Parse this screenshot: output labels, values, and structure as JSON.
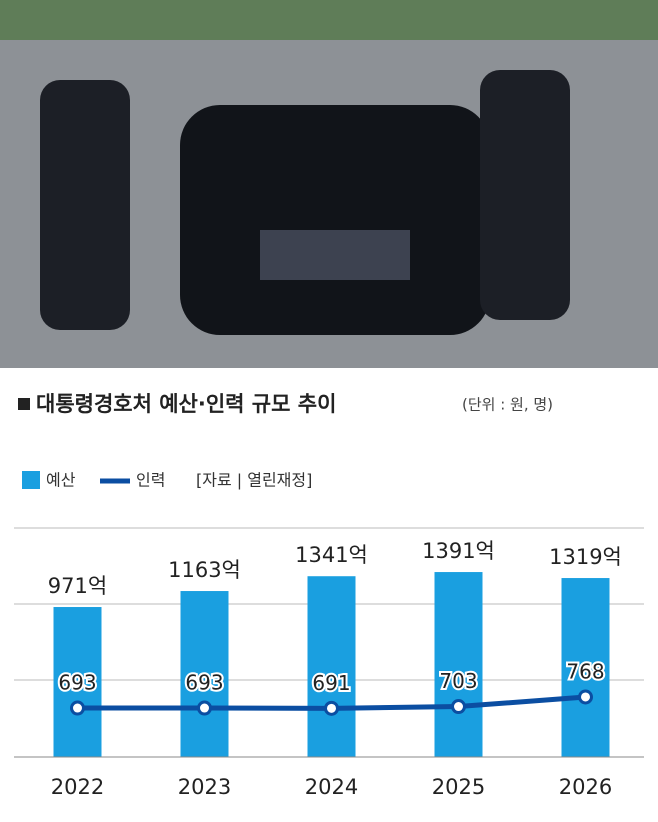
{
  "chart_data": {
    "type": "bar",
    "title": "대통령경호처 예산·인력 규모 추이",
    "subtitle": "(단위 : 원, 명)",
    "source": "[자료 | 열린재정]",
    "categories": [
      "2022",
      "2023",
      "2024",
      "2025",
      "2026"
    ],
    "series": [
      {
        "name": "예산",
        "type": "bar",
        "color": "#1a9fe0",
        "values": [
          971,
          1163,
          1341,
          1391,
          1319
        ],
        "value_labels": [
          "971억",
          "1163억",
          "1341억",
          "1391억",
          "1319억"
        ]
      },
      {
        "name": "인력",
        "type": "line",
        "axis": "y2",
        "color": "#0b4ea2",
        "values": [
          693,
          693,
          691,
          703,
          768
        ]
      }
    ],
    "ylim": [
      -830,
      1920
    ],
    "y2lim": [
      360,
      1917
    ]
  }
}
